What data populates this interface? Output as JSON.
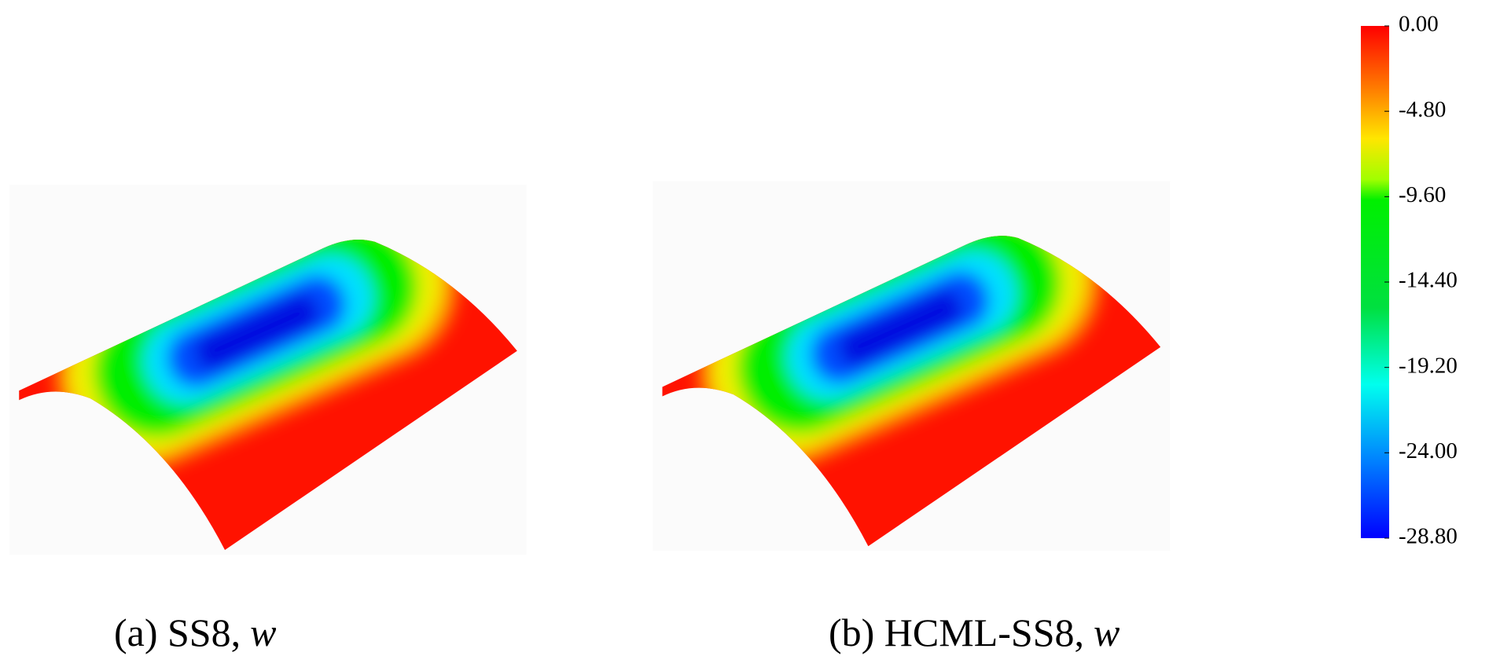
{
  "colorbar": {
    "ticks": [
      {
        "value": 0,
        "label": "0.00"
      },
      {
        "value": -4.8,
        "label": "-4.80"
      },
      {
        "value": -9.6,
        "label": "-9.60"
      },
      {
        "value": -14.4,
        "label": "-14.40"
      },
      {
        "value": -19.2,
        "label": "-19.20"
      },
      {
        "value": -24,
        "label": "-24.00"
      },
      {
        "value": -28.8,
        "label": "-28.80"
      }
    ]
  },
  "panels": [
    {
      "caption": "(a) SS8,",
      "variable": "w"
    },
    {
      "caption": "(b) HCML-SS8,",
      "variable": "w"
    }
  ]
}
